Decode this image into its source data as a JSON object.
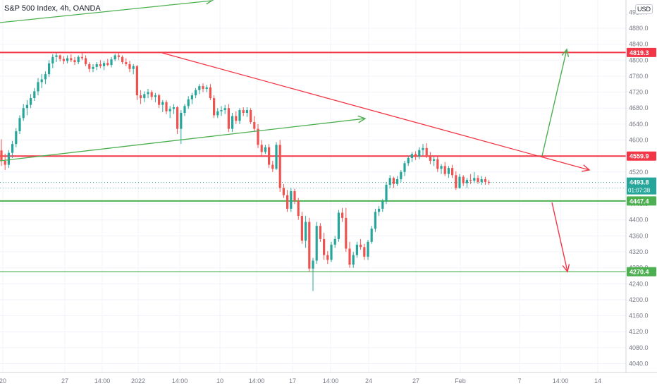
{
  "title": "S&P 500 Index, 4h, OANDA",
  "currency_badge": "USD",
  "price_labels": {
    "top_resistance": "4819.3",
    "mid_resistance": "4559.9",
    "current_price": "4493.8",
    "countdown": "01:07:38",
    "support": "4447.4",
    "lower_support": "4270.4"
  },
  "colors": {
    "up": "#26a69a",
    "down": "#ef5350",
    "resistance": "#f23645",
    "support": "#4caf50",
    "trendline_down": "#f23645",
    "trendline_up": "#4caf50",
    "current_price": "#26a69a",
    "grid": "#f0f3fa",
    "axis_text": "#787b86"
  },
  "chart_data": {
    "type": "candlestick",
    "title": "S&P 500 Index, 4h, OANDA",
    "ylim": [
      4020,
      4920
    ],
    "y_ticks": [
      "4040.0",
      "4080.0",
      "4120.0",
      "4160.0",
      "4200.0",
      "4240.0",
      "4280.0",
      "4320.0",
      "4360.0",
      "4400.0",
      "4440.0",
      "4480.0",
      "4520.0",
      "4560.0",
      "4600.0",
      "4640.0",
      "4680.0",
      "4720.0",
      "4760.0",
      "4800.0",
      "4840.0",
      "4880.0"
    ],
    "y_tick_partial": "4920.0",
    "x_ticks": [
      "20",
      "27",
      "14:00",
      "2022",
      "14:00",
      "10",
      "14:00",
      "17",
      "14:00",
      "24",
      "27",
      "Feb",
      "7",
      "14:00",
      "14"
    ],
    "grid": true,
    "horizontal_levels": [
      {
        "label": "4819.3",
        "value": 4819.3,
        "role": "resistance"
      },
      {
        "label": "4559.9",
        "value": 4559.9,
        "role": "resistance"
      },
      {
        "label": "4447.4",
        "value": 4447.4,
        "role": "support"
      },
      {
        "label": "4270.4",
        "value": 4270.4,
        "role": "support"
      }
    ],
    "current_price": 4493.8,
    "candles": [
      [
        4574,
        4602,
        4535,
        4548
      ],
      [
        4548,
        4566,
        4525,
        4538
      ],
      [
        4538,
        4575,
        4530,
        4568
      ],
      [
        4568,
        4598,
        4555,
        4590
      ],
      [
        4590,
        4630,
        4582,
        4622
      ],
      [
        4622,
        4662,
        4615,
        4655
      ],
      [
        4655,
        4690,
        4648,
        4680
      ],
      [
        4680,
        4700,
        4662,
        4688
      ],
      [
        4688,
        4715,
        4680,
        4705
      ],
      [
        4705,
        4730,
        4698,
        4722
      ],
      [
        4722,
        4755,
        4712,
        4745
      ],
      [
        4745,
        4765,
        4730,
        4752
      ],
      [
        4752,
        4772,
        4740,
        4765
      ],
      [
        4765,
        4800,
        4758,
        4792
      ],
      [
        4792,
        4815,
        4780,
        4808
      ],
      [
        4808,
        4818,
        4795,
        4812
      ],
      [
        4812,
        4814,
        4797,
        4803
      ],
      [
        4803,
        4810,
        4790,
        4798
      ],
      [
        4798,
        4812,
        4792,
        4805
      ],
      [
        4805,
        4815,
        4795,
        4800
      ],
      [
        4800,
        4808,
        4788,
        4795
      ],
      [
        4795,
        4812,
        4790,
        4808
      ],
      [
        4808,
        4818,
        4800,
        4805
      ],
      [
        4805,
        4812,
        4785,
        4790
      ],
      [
        4790,
        4795,
        4770,
        4778
      ],
      [
        4778,
        4790,
        4770,
        4783
      ],
      [
        4783,
        4795,
        4775,
        4790
      ],
      [
        4790,
        4800,
        4780,
        4785
      ],
      [
        4785,
        4798,
        4775,
        4793
      ],
      [
        4793,
        4803,
        4785,
        4788
      ],
      [
        4788,
        4808,
        4782,
        4802
      ],
      [
        4802,
        4816,
        4798,
        4812
      ],
      [
        4812,
        4819,
        4800,
        4808
      ],
      [
        4808,
        4812,
        4790,
        4795
      ],
      [
        4795,
        4805,
        4785,
        4790
      ],
      [
        4790,
        4798,
        4770,
        4778
      ],
      [
        4778,
        4790,
        4765,
        4785
      ],
      [
        4785,
        4788,
        4700,
        4712
      ],
      [
        4712,
        4725,
        4690,
        4705
      ],
      [
        4705,
        4722,
        4695,
        4715
      ],
      [
        4715,
        4728,
        4705,
        4720
      ],
      [
        4720,
        4725,
        4700,
        4708
      ],
      [
        4708,
        4718,
        4695,
        4712
      ],
      [
        4712,
        4716,
        4680,
        4688
      ],
      [
        4688,
        4700,
        4670,
        4695
      ],
      [
        4695,
        4700,
        4665,
        4672
      ],
      [
        4672,
        4685,
        4655,
        4678
      ],
      [
        4678,
        4690,
        4665,
        4682
      ],
      [
        4682,
        4685,
        4615,
        4628
      ],
      [
        4628,
        4675,
        4590,
        4668
      ],
      [
        4668,
        4690,
        4660,
        4685
      ],
      [
        4685,
        4710,
        4678,
        4702
      ],
      [
        4702,
        4718,
        4690,
        4712
      ],
      [
        4712,
        4730,
        4705,
        4725
      ],
      [
        4725,
        4740,
        4715,
        4735
      ],
      [
        4735,
        4742,
        4720,
        4728
      ],
      [
        4728,
        4738,
        4720,
        4732
      ],
      [
        4732,
        4740,
        4700,
        4705
      ],
      [
        4705,
        4712,
        4655,
        4662
      ],
      [
        4662,
        4680,
        4655,
        4672
      ],
      [
        4672,
        4685,
        4660,
        4675
      ],
      [
        4675,
        4688,
        4665,
        4680
      ],
      [
        4680,
        4690,
        4620,
        4628
      ],
      [
        4628,
        4668,
        4620,
        4660
      ],
      [
        4660,
        4672,
        4640,
        4648
      ],
      [
        4648,
        4680,
        4640,
        4675
      ],
      [
        4675,
        4682,
        4660,
        4668
      ],
      [
        4668,
        4682,
        4658,
        4675
      ],
      [
        4675,
        4680,
        4640,
        4645
      ],
      [
        4645,
        4660,
        4620,
        4628
      ],
      [
        4628,
        4640,
        4580,
        4588
      ],
      [
        4588,
        4600,
        4560,
        4570
      ],
      [
        4570,
        4588,
        4565,
        4582
      ],
      [
        4582,
        4590,
        4530,
        4538
      ],
      [
        4538,
        4548,
        4520,
        4528
      ],
      [
        4528,
        4595,
        4525,
        4588
      ],
      [
        4588,
        4600,
        4470,
        4480
      ],
      [
        4480,
        4490,
        4455,
        4462
      ],
      [
        4462,
        4475,
        4420,
        4428
      ],
      [
        4428,
        4480,
        4420,
        4472
      ],
      [
        4472,
        4478,
        4440,
        4448
      ],
      [
        4448,
        4455,
        4400,
        4410
      ],
      [
        4410,
        4420,
        4340,
        4348
      ],
      [
        4348,
        4410,
        4330,
        4395
      ],
      [
        4395,
        4405,
        4270,
        4278
      ],
      [
        4278,
        4305,
        4222,
        4298
      ],
      [
        4298,
        4395,
        4290,
        4385
      ],
      [
        4385,
        4392,
        4345,
        4352
      ],
      [
        4352,
        4368,
        4300,
        4312
      ],
      [
        4312,
        4322,
        4290,
        4300
      ],
      [
        4300,
        4345,
        4295,
        4338
      ],
      [
        4338,
        4360,
        4330,
        4352
      ],
      [
        4352,
        4425,
        4345,
        4418
      ],
      [
        4418,
        4430,
        4395,
        4405
      ],
      [
        4405,
        4430,
        4320,
        4328
      ],
      [
        4328,
        4345,
        4280,
        4288
      ],
      [
        4288,
        4320,
        4280,
        4312
      ],
      [
        4312,
        4345,
        4305,
        4338
      ],
      [
        4338,
        4352,
        4325,
        4332
      ],
      [
        4332,
        4340,
        4300,
        4308
      ],
      [
        4308,
        4350,
        4300,
        4345
      ],
      [
        4345,
        4385,
        4340,
        4378
      ],
      [
        4378,
        4428,
        4370,
        4420
      ],
      [
        4420,
        4435,
        4410,
        4428
      ],
      [
        4428,
        4452,
        4420,
        4447
      ],
      [
        4447,
        4495,
        4440,
        4488
      ],
      [
        4488,
        4512,
        4480,
        4505
      ],
      [
        4505,
        4508,
        4480,
        4490
      ],
      [
        4490,
        4510,
        4485,
        4502
      ],
      [
        4502,
        4525,
        4495,
        4520
      ],
      [
        4520,
        4548,
        4510,
        4542
      ],
      [
        4542,
        4560,
        4535,
        4555
      ],
      [
        4555,
        4570,
        4545,
        4565
      ],
      [
        4565,
        4572,
        4550,
        4558
      ],
      [
        4558,
        4582,
        4552,
        4575
      ],
      [
        4575,
        4590,
        4562,
        4580
      ],
      [
        4580,
        4592,
        4555,
        4562
      ],
      [
        4562,
        4570,
        4540,
        4548
      ],
      [
        4548,
        4558,
        4535,
        4552
      ],
      [
        4552,
        4560,
        4520,
        4528
      ],
      [
        4528,
        4540,
        4515,
        4535
      ],
      [
        4535,
        4545,
        4510,
        4515
      ],
      [
        4515,
        4535,
        4505,
        4530
      ],
      [
        4530,
        4538,
        4505,
        4512
      ],
      [
        4512,
        4522,
        4475,
        4480
      ],
      [
        4480,
        4515,
        4478,
        4508
      ],
      [
        4508,
        4512,
        4485,
        4492
      ],
      [
        4492,
        4505,
        4480,
        4500
      ],
      [
        4500,
        4515,
        4490,
        4498
      ],
      [
        4498,
        4520,
        4492,
        4505
      ],
      [
        4505,
        4512,
        4490,
        4495
      ],
      [
        4495,
        4510,
        4488,
        4502
      ],
      [
        4502,
        4508,
        4488,
        4495
      ],
      [
        4495,
        4500,
        4488,
        4493.8
      ]
    ]
  }
}
